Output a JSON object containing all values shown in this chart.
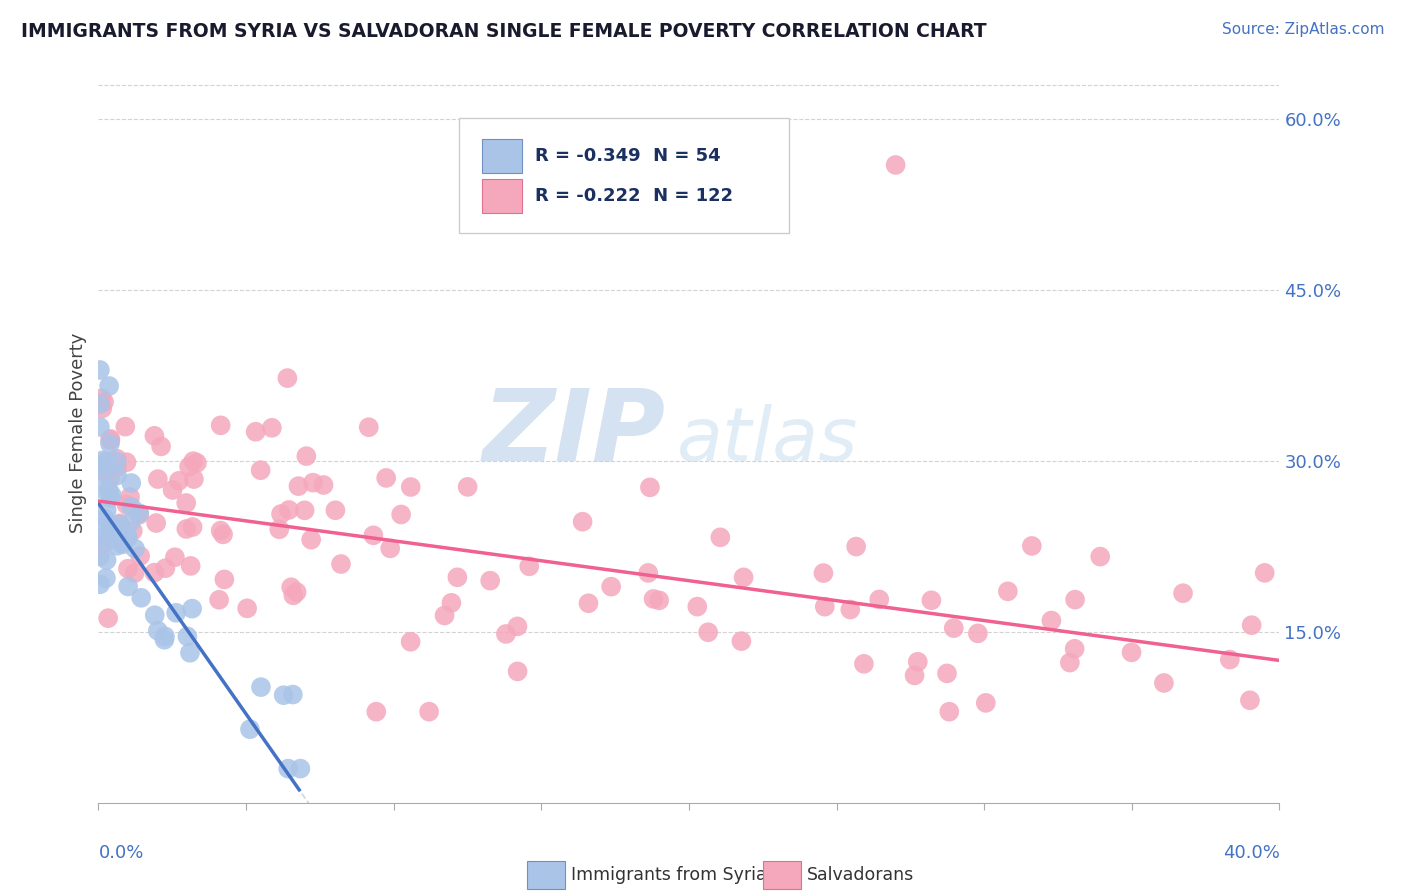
{
  "title": "IMMIGRANTS FROM SYRIA VS SALVADORAN SINGLE FEMALE POVERTY CORRELATION CHART",
  "source_text": "Source: ZipAtlas.com",
  "ylabel": "Single Female Poverty",
  "yaxis_ticks": [
    0.15,
    0.3,
    0.45,
    0.6
  ],
  "yaxis_tick_labels": [
    "15.0%",
    "30.0%",
    "45.0%",
    "60.0%"
  ],
  "xmin": 0.0,
  "xmax": 0.4,
  "ymin": 0.0,
  "ymax": 0.65,
  "legend_blue_R": "-0.349",
  "legend_blue_N": "54",
  "legend_pink_R": "-0.222",
  "legend_pink_N": "122",
  "series1_color": "#aac4e8",
  "series2_color": "#f5a8bc",
  "trendline1_color": "#4472c4",
  "trendline2_color": "#f06090",
  "watermark_zip_color": "#b8cfe8",
  "watermark_atlas_color": "#c8dff0",
  "background_color": "#ffffff",
  "grid_color": "#c8c8c8",
  "legend_text_color": "#1a3060",
  "title_color": "#1a1a2e",
  "source_color": "#4472c4",
  "axis_label_color": "#4472c4",
  "bottom_legend_color": "#333333"
}
